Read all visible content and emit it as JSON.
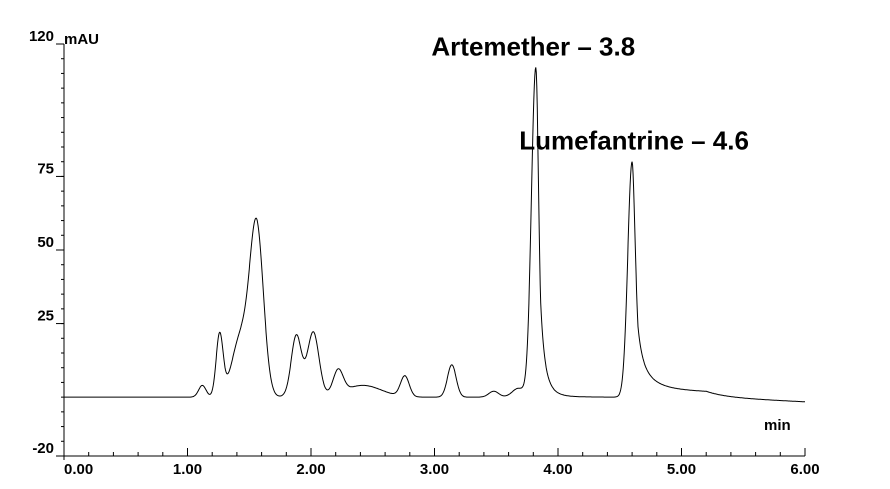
{
  "chart_data": {
    "type": "line",
    "title": "",
    "xlabel": "min",
    "ylabel": "mAU",
    "xlim": [
      0,
      6
    ],
    "ylim": [
      -20,
      120
    ],
    "grid": false,
    "legend": "none",
    "x_ticks": [
      {
        "value": 0,
        "label": "0.00"
      },
      {
        "value": 1,
        "label": "1.00"
      },
      {
        "value": 2,
        "label": "2.00"
      },
      {
        "value": 3,
        "label": "3.00"
      },
      {
        "value": 4,
        "label": "4.00"
      },
      {
        "value": 5,
        "label": "5.00"
      },
      {
        "value": 6,
        "label": "6.00"
      }
    ],
    "y_ticks": [
      {
        "value": -20,
        "label": "-20"
      },
      {
        "value": 25,
        "label": "25"
      },
      {
        "value": 50,
        "label": "50"
      },
      {
        "value": 75,
        "label": "75"
      },
      {
        "value": 120,
        "label": "120"
      }
    ],
    "baseline": 0,
    "peaks": [
      {
        "rt": 1.12,
        "height": 4,
        "width": 0.03
      },
      {
        "rt": 1.26,
        "height": 21,
        "width": 0.028
      },
      {
        "rt": 1.43,
        "height": 20,
        "width": 0.07
      },
      {
        "rt": 1.56,
        "height": 57,
        "width": 0.055
      },
      {
        "rt": 1.88,
        "height": 19,
        "width": 0.04
      },
      {
        "rt": 2.02,
        "height": 20,
        "width": 0.045
      },
      {
        "rt": 1.95,
        "height": 3,
        "width": 0.08
      },
      {
        "rt": 2.22,
        "height": 8,
        "width": 0.04
      },
      {
        "rt": 2.42,
        "height": 4,
        "width": 0.15
      },
      {
        "rt": 2.76,
        "height": 7,
        "width": 0.035
      },
      {
        "rt": 3.14,
        "height": 11,
        "width": 0.035
      },
      {
        "rt": 3.48,
        "height": 2,
        "width": 0.04
      },
      {
        "rt": 3.68,
        "height": 3,
        "width": 0.05
      },
      {
        "rt": 3.82,
        "height": 112,
        "width": 0.035,
        "tail": 0.05
      },
      {
        "rt": 4.6,
        "height": 80,
        "width": 0.035,
        "tail": 0.16
      }
    ],
    "annotations": [
      {
        "text": "Artemether – 3.8",
        "x": 3.8,
        "y": 112
      },
      {
        "text": "Lumefantrine – 4.6",
        "x": 4.6,
        "y": 80
      }
    ]
  }
}
